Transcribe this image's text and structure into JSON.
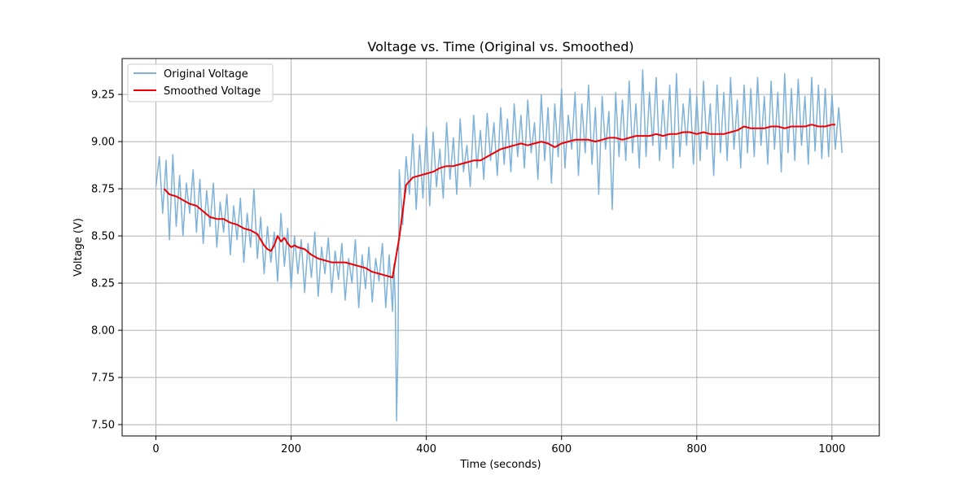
{
  "chart_data": {
    "type": "line",
    "title": "Voltage vs. Time (Original vs. Smoothed)",
    "xlabel": "Time (seconds)",
    "ylabel": "Voltage (V)",
    "xlim": [
      -50,
      1070
    ],
    "ylim": [
      7.44,
      9.44
    ],
    "xticks": [
      0,
      200,
      400,
      600,
      800,
      1000
    ],
    "yticks": [
      7.5,
      7.75,
      8.0,
      8.25,
      8.5,
      8.75,
      9.0,
      9.25
    ],
    "xtick_labels": [
      "0",
      "200",
      "400",
      "600",
      "800",
      "1000"
    ],
    "ytick_labels": [
      "7.50",
      "7.75",
      "8.00",
      "8.25",
      "8.50",
      "8.75",
      "9.00",
      "9.25"
    ],
    "grid": true,
    "legend": "top-left",
    "series": [
      {
        "name": "Original Voltage",
        "color": "#7fb2d8",
        "x": [
          0,
          5,
          10,
          15,
          20,
          25,
          30,
          35,
          40,
          45,
          50,
          55,
          60,
          65,
          70,
          75,
          80,
          85,
          90,
          95,
          100,
          105,
          110,
          115,
          120,
          125,
          130,
          135,
          140,
          145,
          150,
          155,
          160,
          165,
          170,
          175,
          180,
          185,
          190,
          195,
          200,
          205,
          210,
          215,
          220,
          225,
          230,
          235,
          240,
          245,
          250,
          255,
          260,
          265,
          270,
          275,
          280,
          285,
          290,
          295,
          300,
          305,
          310,
          315,
          320,
          325,
          330,
          335,
          340,
          345,
          350,
          352,
          354,
          356,
          358,
          360,
          365,
          370,
          375,
          380,
          385,
          390,
          395,
          400,
          405,
          410,
          415,
          420,
          425,
          430,
          435,
          440,
          445,
          450,
          455,
          460,
          465,
          470,
          475,
          480,
          485,
          490,
          495,
          500,
          505,
          510,
          515,
          520,
          525,
          530,
          535,
          540,
          545,
          550,
          555,
          560,
          565,
          570,
          575,
          580,
          585,
          590,
          595,
          600,
          605,
          610,
          615,
          620,
          625,
          630,
          635,
          640,
          645,
          650,
          655,
          660,
          665,
          670,
          675,
          680,
          685,
          690,
          695,
          700,
          705,
          710,
          715,
          720,
          725,
          730,
          735,
          740,
          745,
          750,
          755,
          760,
          765,
          770,
          775,
          780,
          785,
          790,
          795,
          800,
          805,
          810,
          815,
          820,
          825,
          830,
          835,
          840,
          845,
          850,
          855,
          860,
          865,
          870,
          875,
          880,
          885,
          890,
          895,
          900,
          905,
          910,
          915,
          920,
          925,
          930,
          935,
          940,
          945,
          950,
          955,
          960,
          965,
          970,
          975,
          980,
          985,
          990,
          995,
          1000,
          1005,
          1010,
          1015
        ],
        "values": [
          8.76,
          8.92,
          8.62,
          8.9,
          8.48,
          8.93,
          8.55,
          8.82,
          8.5,
          8.78,
          8.62,
          8.85,
          8.52,
          8.8,
          8.46,
          8.74,
          8.55,
          8.78,
          8.44,
          8.68,
          8.52,
          8.72,
          8.4,
          8.66,
          8.48,
          8.7,
          8.36,
          8.62,
          8.44,
          8.75,
          8.38,
          8.6,
          8.3,
          8.55,
          8.36,
          8.52,
          8.26,
          8.62,
          8.34,
          8.54,
          8.22,
          8.5,
          8.3,
          8.48,
          8.2,
          8.46,
          8.28,
          8.52,
          8.18,
          8.44,
          8.3,
          8.49,
          8.2,
          8.42,
          8.27,
          8.46,
          8.16,
          8.38,
          8.25,
          8.48,
          8.12,
          8.4,
          8.22,
          8.44,
          8.15,
          8.38,
          8.26,
          8.46,
          8.12,
          8.4,
          8.1,
          8.35,
          8.15,
          7.52,
          7.9,
          8.85,
          8.56,
          8.92,
          8.72,
          9.04,
          8.64,
          8.98,
          8.7,
          9.08,
          8.66,
          9.05,
          8.76,
          8.96,
          8.7,
          9.1,
          8.8,
          9.02,
          8.72,
          9.12,
          8.84,
          8.98,
          8.76,
          9.14,
          8.86,
          9.06,
          8.8,
          9.15,
          8.9,
          9.1,
          8.82,
          9.18,
          8.88,
          9.12,
          8.84,
          9.2,
          8.92,
          9.14,
          8.86,
          9.22,
          8.94,
          9.1,
          8.8,
          9.25,
          8.9,
          9.18,
          8.78,
          9.2,
          8.92,
          9.28,
          8.86,
          9.14,
          8.96,
          9.26,
          8.82,
          9.2,
          8.94,
          9.3,
          8.88,
          9.18,
          8.72,
          9.24,
          8.96,
          9.16,
          8.64,
          9.26,
          8.92,
          9.22,
          8.9,
          9.32,
          8.94,
          9.2,
          8.86,
          9.38,
          8.92,
          9.26,
          8.98,
          9.34,
          8.9,
          9.22,
          8.96,
          9.3,
          8.86,
          9.36,
          8.92,
          9.2,
          8.98,
          9.28,
          8.88,
          9.24,
          8.9,
          9.32,
          8.96,
          9.2,
          8.82,
          9.3,
          8.94,
          9.26,
          8.9,
          9.34,
          8.96,
          9.22,
          8.86,
          9.3,
          8.94,
          9.28,
          8.92,
          9.34,
          8.98,
          9.24,
          8.88,
          9.32,
          8.96,
          9.26,
          8.84,
          9.36,
          8.94,
          9.28,
          8.9,
          9.33,
          8.98,
          9.24,
          8.88,
          9.34,
          8.95,
          9.3,
          8.91,
          9.28,
          8.92,
          9.25,
          8.96,
          9.18,
          8.94
        ]
      },
      {
        "name": "Smoothed Voltage",
        "color": "#ee0000",
        "x": [
          12,
          20,
          30,
          40,
          50,
          60,
          70,
          80,
          90,
          100,
          110,
          120,
          130,
          140,
          150,
          155,
          160,
          165,
          170,
          175,
          180,
          185,
          190,
          195,
          200,
          205,
          210,
          220,
          230,
          240,
          250,
          260,
          270,
          280,
          290,
          300,
          310,
          320,
          330,
          340,
          350,
          360,
          370,
          380,
          390,
          400,
          410,
          420,
          430,
          440,
          450,
          460,
          470,
          480,
          490,
          500,
          510,
          520,
          530,
          540,
          550,
          560,
          570,
          580,
          590,
          600,
          610,
          620,
          630,
          640,
          650,
          660,
          670,
          680,
          690,
          700,
          710,
          720,
          730,
          740,
          750,
          760,
          770,
          780,
          790,
          800,
          810,
          820,
          830,
          840,
          850,
          860,
          870,
          880,
          890,
          900,
          910,
          920,
          930,
          940,
          950,
          960,
          970,
          980,
          990,
          1000,
          1005
        ],
        "values": [
          8.75,
          8.72,
          8.71,
          8.69,
          8.67,
          8.66,
          8.63,
          8.6,
          8.59,
          8.59,
          8.57,
          8.56,
          8.54,
          8.53,
          8.51,
          8.48,
          8.45,
          8.43,
          8.42,
          8.45,
          8.5,
          8.47,
          8.49,
          8.46,
          8.44,
          8.45,
          8.44,
          8.43,
          8.4,
          8.38,
          8.37,
          8.36,
          8.36,
          8.36,
          8.35,
          8.34,
          8.33,
          8.31,
          8.3,
          8.29,
          8.28,
          8.49,
          8.77,
          8.81,
          8.82,
          8.83,
          8.84,
          8.86,
          8.87,
          8.87,
          8.88,
          8.89,
          8.9,
          8.9,
          8.92,
          8.94,
          8.96,
          8.97,
          8.98,
          8.99,
          8.98,
          8.99,
          9.0,
          8.99,
          8.97,
          8.99,
          9.0,
          9.01,
          9.01,
          9.01,
          9.0,
          9.01,
          9.02,
          9.02,
          9.01,
          9.02,
          9.03,
          9.03,
          9.03,
          9.04,
          9.03,
          9.04,
          9.04,
          9.05,
          9.05,
          9.04,
          9.05,
          9.04,
          9.04,
          9.04,
          9.05,
          9.06,
          9.08,
          9.07,
          9.07,
          9.07,
          9.08,
          9.08,
          9.07,
          9.08,
          9.08,
          9.08,
          9.09,
          9.08,
          9.08,
          9.09,
          9.09
        ]
      }
    ]
  }
}
